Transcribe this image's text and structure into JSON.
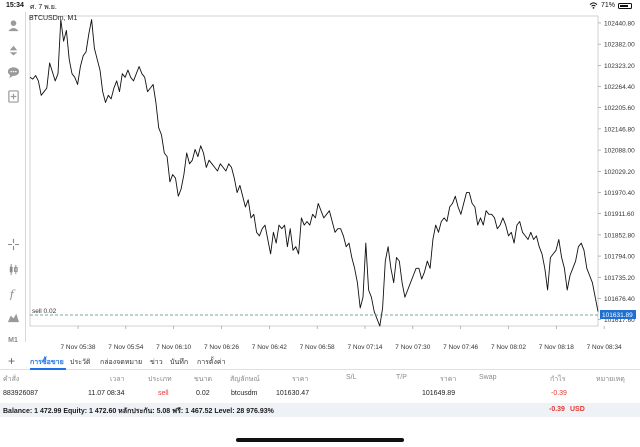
{
  "status": {
    "time": "15:34",
    "date": "ศ. 7 พ.ย.",
    "battery": "71%"
  },
  "chart": {
    "symbol_label": "BTCUSDm, M1",
    "order_line_label": "sell 0.02",
    "current_price_label": "101631.89",
    "line_color": "#111111",
    "current_price_bg": "#1f6fd1",
    "order_line_color": "#4a8a7a"
  },
  "chart_data": {
    "type": "line",
    "title": "",
    "xlabel": "",
    "ylabel": "",
    "ylim": [
      101600,
      102460
    ],
    "x_ticks": [
      "7 Nov 05:38",
      "7 Nov 05:54",
      "7 Nov 06:10",
      "7 Nov 06:26",
      "7 Nov 06:42",
      "7 Nov 06:58",
      "7 Nov 07:14",
      "7 Nov 07:30",
      "7 Nov 07:46",
      "7 Nov 08:02",
      "7 Nov 08:18",
      "7 Nov 08:34"
    ],
    "y_ticks": [
      "102440.80",
      "102382.00",
      "102323.20",
      "102264.40",
      "102205.60",
      "102146.80",
      "102088.00",
      "102029.20",
      "101970.40",
      "101911.60",
      "101852.80",
      "101794.00",
      "101735.20",
      "101676.40",
      "101617.60"
    ],
    "series": [
      {
        "values": [
          102290,
          102285,
          102295,
          102280,
          102240,
          102250,
          102260,
          102330,
          102305,
          102280,
          102300,
          102450,
          102390,
          102420,
          102340,
          102300,
          102290,
          102270,
          102320,
          102350,
          102360,
          102410,
          102450,
          102370,
          102340,
          102310,
          102250,
          102220,
          102240,
          102230,
          102260,
          102280,
          102250,
          102300,
          102290,
          102310,
          102290,
          102280,
          102300,
          102320,
          102300,
          102290,
          102250,
          102260,
          102270,
          102220,
          102150,
          102130,
          102080,
          102070,
          102000,
          102020,
          102010,
          101960,
          101980,
          102020,
          102080,
          102050,
          102060,
          102090,
          102070,
          102100,
          102080,
          102040,
          102060,
          102050,
          102040,
          102030,
          102050,
          102040,
          102030,
          102050,
          102040,
          102010,
          101970,
          101990,
          101960,
          101930,
          101950,
          101900,
          101910,
          101860,
          101850,
          101870,
          101880,
          101840,
          101800,
          101860,
          101830,
          101880,
          101870,
          101880,
          101820,
          101870,
          101810,
          101820,
          101800,
          101900,
          101880,
          101890,
          101880,
          101910,
          101900,
          101940,
          101920,
          101900,
          101910,
          101920,
          101890,
          101860,
          101870,
          101870,
          101850,
          101820,
          101830,
          101790,
          101760,
          101720,
          101650,
          101680,
          101830,
          101700,
          101680,
          101640,
          101620,
          101600,
          101650,
          101780,
          101820,
          101760,
          101720,
          101790,
          101780,
          101720,
          101680,
          101700,
          101720,
          101740,
          101760,
          101760,
          101730,
          101750,
          101780,
          101760,
          101840,
          101880,
          101860,
          101890,
          101900,
          101890,
          101930,
          101940,
          101960,
          101930,
          101910,
          101940,
          101970,
          101970,
          101940,
          101930,
          101880,
          101900,
          101880,
          101920,
          101910,
          101910,
          101900,
          101870,
          101880,
          101900,
          101880,
          101850,
          101860,
          101830,
          101880,
          101890,
          101860,
          101850,
          101840,
          101860,
          101840,
          101850,
          101820,
          101800,
          101760,
          101700,
          101790,
          101800,
          101810,
          101840,
          101790,
          101760,
          101700,
          101740,
          101760,
          101780,
          101820,
          101830,
          101810,
          101760,
          101740,
          101720,
          101680,
          101640
        ]
      }
    ],
    "grid": true,
    "legend": "none"
  },
  "tabs": [
    {
      "label": "การซื้อขาย",
      "active": true
    },
    {
      "label": "ประวัติ"
    },
    {
      "label": "กล่องจดหมาย"
    },
    {
      "label": "ข่าว"
    },
    {
      "label": "บันทึก"
    },
    {
      "label": "การตั้งค่า"
    }
  ],
  "columns": [
    "คำสั่ง",
    "เวลา",
    "ประเภท",
    "ขนาด",
    "สัญลักษณ์",
    "ราคา",
    "S/L",
    "T/P",
    "ราคา",
    "Swap",
    "กำไร",
    "หมายเหตุ"
  ],
  "order_row": {
    "order": "883926087",
    "time": "11.07 08:34",
    "type": "sell",
    "volume": "0.02",
    "symbol": "btcusdm",
    "open_price": "101630.47",
    "sl": "",
    "tp": "",
    "price": "101649.89",
    "swap": "",
    "profit": "-0.39",
    "comment": ""
  },
  "balance": {
    "text": "Balance: 1 472.99 Equity: 1 472.60 หลักประกัน: 5.08 ฟรี: 1 467.52 Level: 28 976.93%",
    "profit": "-0.39",
    "currency": "USD"
  }
}
